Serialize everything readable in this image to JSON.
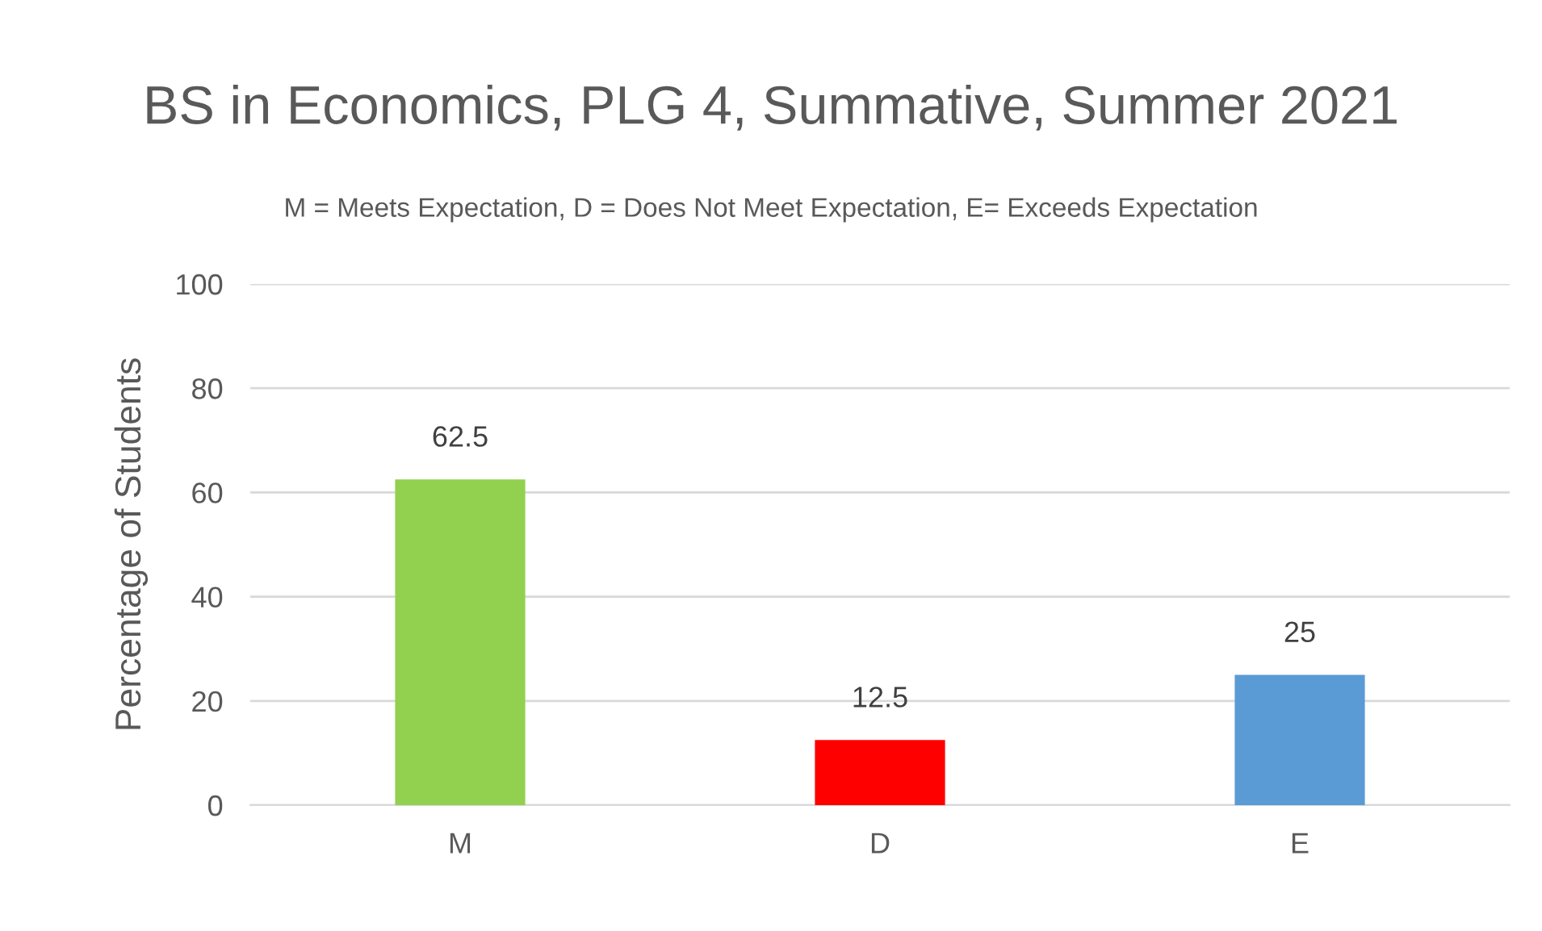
{
  "chart_data": {
    "type": "bar",
    "title": "BS in Economics, PLG 4, Summative, Summer 2021",
    "subtitle": "M = Meets Expectation, D = Does Not Meet Expectation, E= Exceeds Expectation",
    "ylabel": "Percentage of Students",
    "categories": [
      "M",
      "D",
      "E"
    ],
    "values": [
      62.5,
      12.5,
      25
    ],
    "colors": [
      "#92d050",
      "#ff0000",
      "#5b9bd5"
    ],
    "ylim": [
      0,
      100
    ],
    "yticks": [
      0,
      20,
      40,
      60,
      80,
      100
    ],
    "grid": "y",
    "data_labels": true,
    "legend": false
  }
}
